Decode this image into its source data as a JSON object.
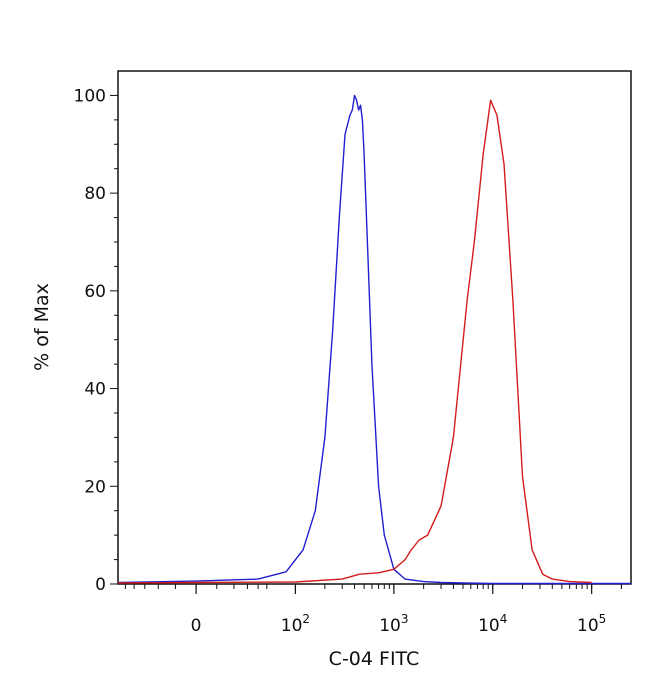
{
  "chart_data": {
    "type": "line",
    "title": "",
    "xlabel": "C-04 FITC",
    "ylabel": "% of Max",
    "x_scale": "biexponential",
    "xlim": [
      -60,
      250000
    ],
    "ylim": [
      0,
      105
    ],
    "grid": false,
    "legend": "none",
    "y_ticks": [
      0,
      20,
      40,
      60,
      80,
      100
    ],
    "x_ticks": [
      {
        "value": 0,
        "base": "0",
        "exp": ""
      },
      {
        "value": 100,
        "base": "10",
        "exp": "2"
      },
      {
        "value": 1000,
        "base": "10",
        "exp": "3"
      },
      {
        "value": 10000,
        "base": "10",
        "exp": "4"
      },
      {
        "value": 100000,
        "base": "10",
        "exp": "5"
      }
    ],
    "series": [
      {
        "color": "#2020d0",
        "x": [
          -60,
          0,
          40,
          80,
          120,
          160,
          200,
          240,
          280,
          320,
          360,
          380,
          400,
          420,
          440,
          460,
          480,
          500,
          540,
          600,
          700,
          800,
          1000,
          1300,
          2000,
          3000,
          5000,
          10000,
          30000,
          100000,
          250000
        ],
        "y": [
          0.3,
          0.6,
          1,
          2.5,
          7,
          15,
          30,
          52,
          75,
          92,
          96,
          97,
          100,
          99,
          97,
          98,
          95,
          88,
          70,
          45,
          20,
          10,
          3,
          1,
          0.5,
          0.3,
          0.2,
          0.1,
          0.1,
          0.1,
          0.1
        ]
      },
      {
        "color": "#d41c1c",
        "x": [
          -60,
          0,
          100,
          300,
          450,
          700,
          1000,
          1300,
          1500,
          1800,
          2200,
          3000,
          4000,
          5500,
          6500,
          8000,
          9500,
          11000,
          13000,
          16000,
          20000,
          25000,
          32000,
          40000,
          60000,
          100000
        ],
        "y": [
          0.2,
          0.3,
          0.4,
          1,
          2,
          2.3,
          3,
          5,
          7,
          9,
          10,
          16,
          30,
          58,
          70,
          88,
          99,
          96,
          86,
          58,
          22,
          7,
          2,
          1,
          0.5,
          0.3
        ]
      }
    ]
  }
}
